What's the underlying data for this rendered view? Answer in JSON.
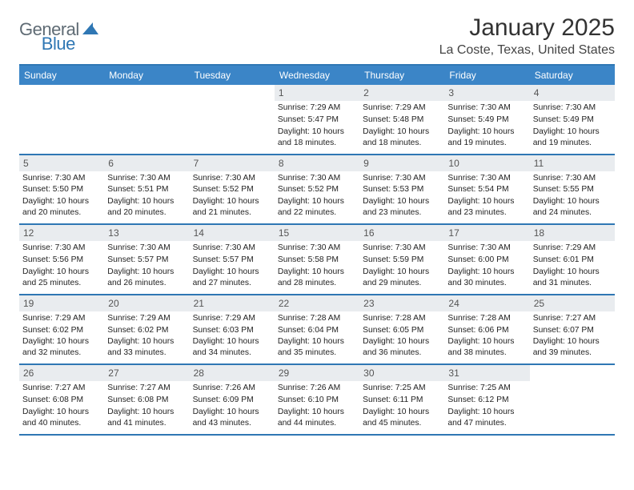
{
  "logo": {
    "part1": "General",
    "part2": "Blue",
    "triangle_color": "#2f77b4"
  },
  "title": "January 2025",
  "location": "La Coste, Texas, United States",
  "colors": {
    "header_bg": "#3b85c7",
    "border": "#2f77b4",
    "daynum_bg": "#e9ecef",
    "text": "#222222"
  },
  "day_labels": [
    "Sunday",
    "Monday",
    "Tuesday",
    "Wednesday",
    "Thursday",
    "Friday",
    "Saturday"
  ],
  "weeks": [
    [
      null,
      null,
      null,
      {
        "n": "1",
        "sr": "7:29 AM",
        "ss": "5:47 PM",
        "dh": "10",
        "dm": "18"
      },
      {
        "n": "2",
        "sr": "7:29 AM",
        "ss": "5:48 PM",
        "dh": "10",
        "dm": "18"
      },
      {
        "n": "3",
        "sr": "7:30 AM",
        "ss": "5:49 PM",
        "dh": "10",
        "dm": "19"
      },
      {
        "n": "4",
        "sr": "7:30 AM",
        "ss": "5:49 PM",
        "dh": "10",
        "dm": "19"
      }
    ],
    [
      {
        "n": "5",
        "sr": "7:30 AM",
        "ss": "5:50 PM",
        "dh": "10",
        "dm": "20"
      },
      {
        "n": "6",
        "sr": "7:30 AM",
        "ss": "5:51 PM",
        "dh": "10",
        "dm": "20"
      },
      {
        "n": "7",
        "sr": "7:30 AM",
        "ss": "5:52 PM",
        "dh": "10",
        "dm": "21"
      },
      {
        "n": "8",
        "sr": "7:30 AM",
        "ss": "5:52 PM",
        "dh": "10",
        "dm": "22"
      },
      {
        "n": "9",
        "sr": "7:30 AM",
        "ss": "5:53 PM",
        "dh": "10",
        "dm": "23"
      },
      {
        "n": "10",
        "sr": "7:30 AM",
        "ss": "5:54 PM",
        "dh": "10",
        "dm": "23"
      },
      {
        "n": "11",
        "sr": "7:30 AM",
        "ss": "5:55 PM",
        "dh": "10",
        "dm": "24"
      }
    ],
    [
      {
        "n": "12",
        "sr": "7:30 AM",
        "ss": "5:56 PM",
        "dh": "10",
        "dm": "25"
      },
      {
        "n": "13",
        "sr": "7:30 AM",
        "ss": "5:57 PM",
        "dh": "10",
        "dm": "26"
      },
      {
        "n": "14",
        "sr": "7:30 AM",
        "ss": "5:57 PM",
        "dh": "10",
        "dm": "27"
      },
      {
        "n": "15",
        "sr": "7:30 AM",
        "ss": "5:58 PM",
        "dh": "10",
        "dm": "28"
      },
      {
        "n": "16",
        "sr": "7:30 AM",
        "ss": "5:59 PM",
        "dh": "10",
        "dm": "29"
      },
      {
        "n": "17",
        "sr": "7:30 AM",
        "ss": "6:00 PM",
        "dh": "10",
        "dm": "30"
      },
      {
        "n": "18",
        "sr": "7:29 AM",
        "ss": "6:01 PM",
        "dh": "10",
        "dm": "31"
      }
    ],
    [
      {
        "n": "19",
        "sr": "7:29 AM",
        "ss": "6:02 PM",
        "dh": "10",
        "dm": "32"
      },
      {
        "n": "20",
        "sr": "7:29 AM",
        "ss": "6:02 PM",
        "dh": "10",
        "dm": "33"
      },
      {
        "n": "21",
        "sr": "7:29 AM",
        "ss": "6:03 PM",
        "dh": "10",
        "dm": "34"
      },
      {
        "n": "22",
        "sr": "7:28 AM",
        "ss": "6:04 PM",
        "dh": "10",
        "dm": "35"
      },
      {
        "n": "23",
        "sr": "7:28 AM",
        "ss": "6:05 PM",
        "dh": "10",
        "dm": "36"
      },
      {
        "n": "24",
        "sr": "7:28 AM",
        "ss": "6:06 PM",
        "dh": "10",
        "dm": "38"
      },
      {
        "n": "25",
        "sr": "7:27 AM",
        "ss": "6:07 PM",
        "dh": "10",
        "dm": "39"
      }
    ],
    [
      {
        "n": "26",
        "sr": "7:27 AM",
        "ss": "6:08 PM",
        "dh": "10",
        "dm": "40"
      },
      {
        "n": "27",
        "sr": "7:27 AM",
        "ss": "6:08 PM",
        "dh": "10",
        "dm": "41"
      },
      {
        "n": "28",
        "sr": "7:26 AM",
        "ss": "6:09 PM",
        "dh": "10",
        "dm": "43"
      },
      {
        "n": "29",
        "sr": "7:26 AM",
        "ss": "6:10 PM",
        "dh": "10",
        "dm": "44"
      },
      {
        "n": "30",
        "sr": "7:25 AM",
        "ss": "6:11 PM",
        "dh": "10",
        "dm": "45"
      },
      {
        "n": "31",
        "sr": "7:25 AM",
        "ss": "6:12 PM",
        "dh": "10",
        "dm": "47"
      },
      null
    ]
  ],
  "labels": {
    "sunrise": "Sunrise:",
    "sunset": "Sunset:",
    "daylight_prefix": "Daylight:",
    "hours_word": "hours",
    "and_word": "and",
    "minutes_word": "minutes."
  }
}
